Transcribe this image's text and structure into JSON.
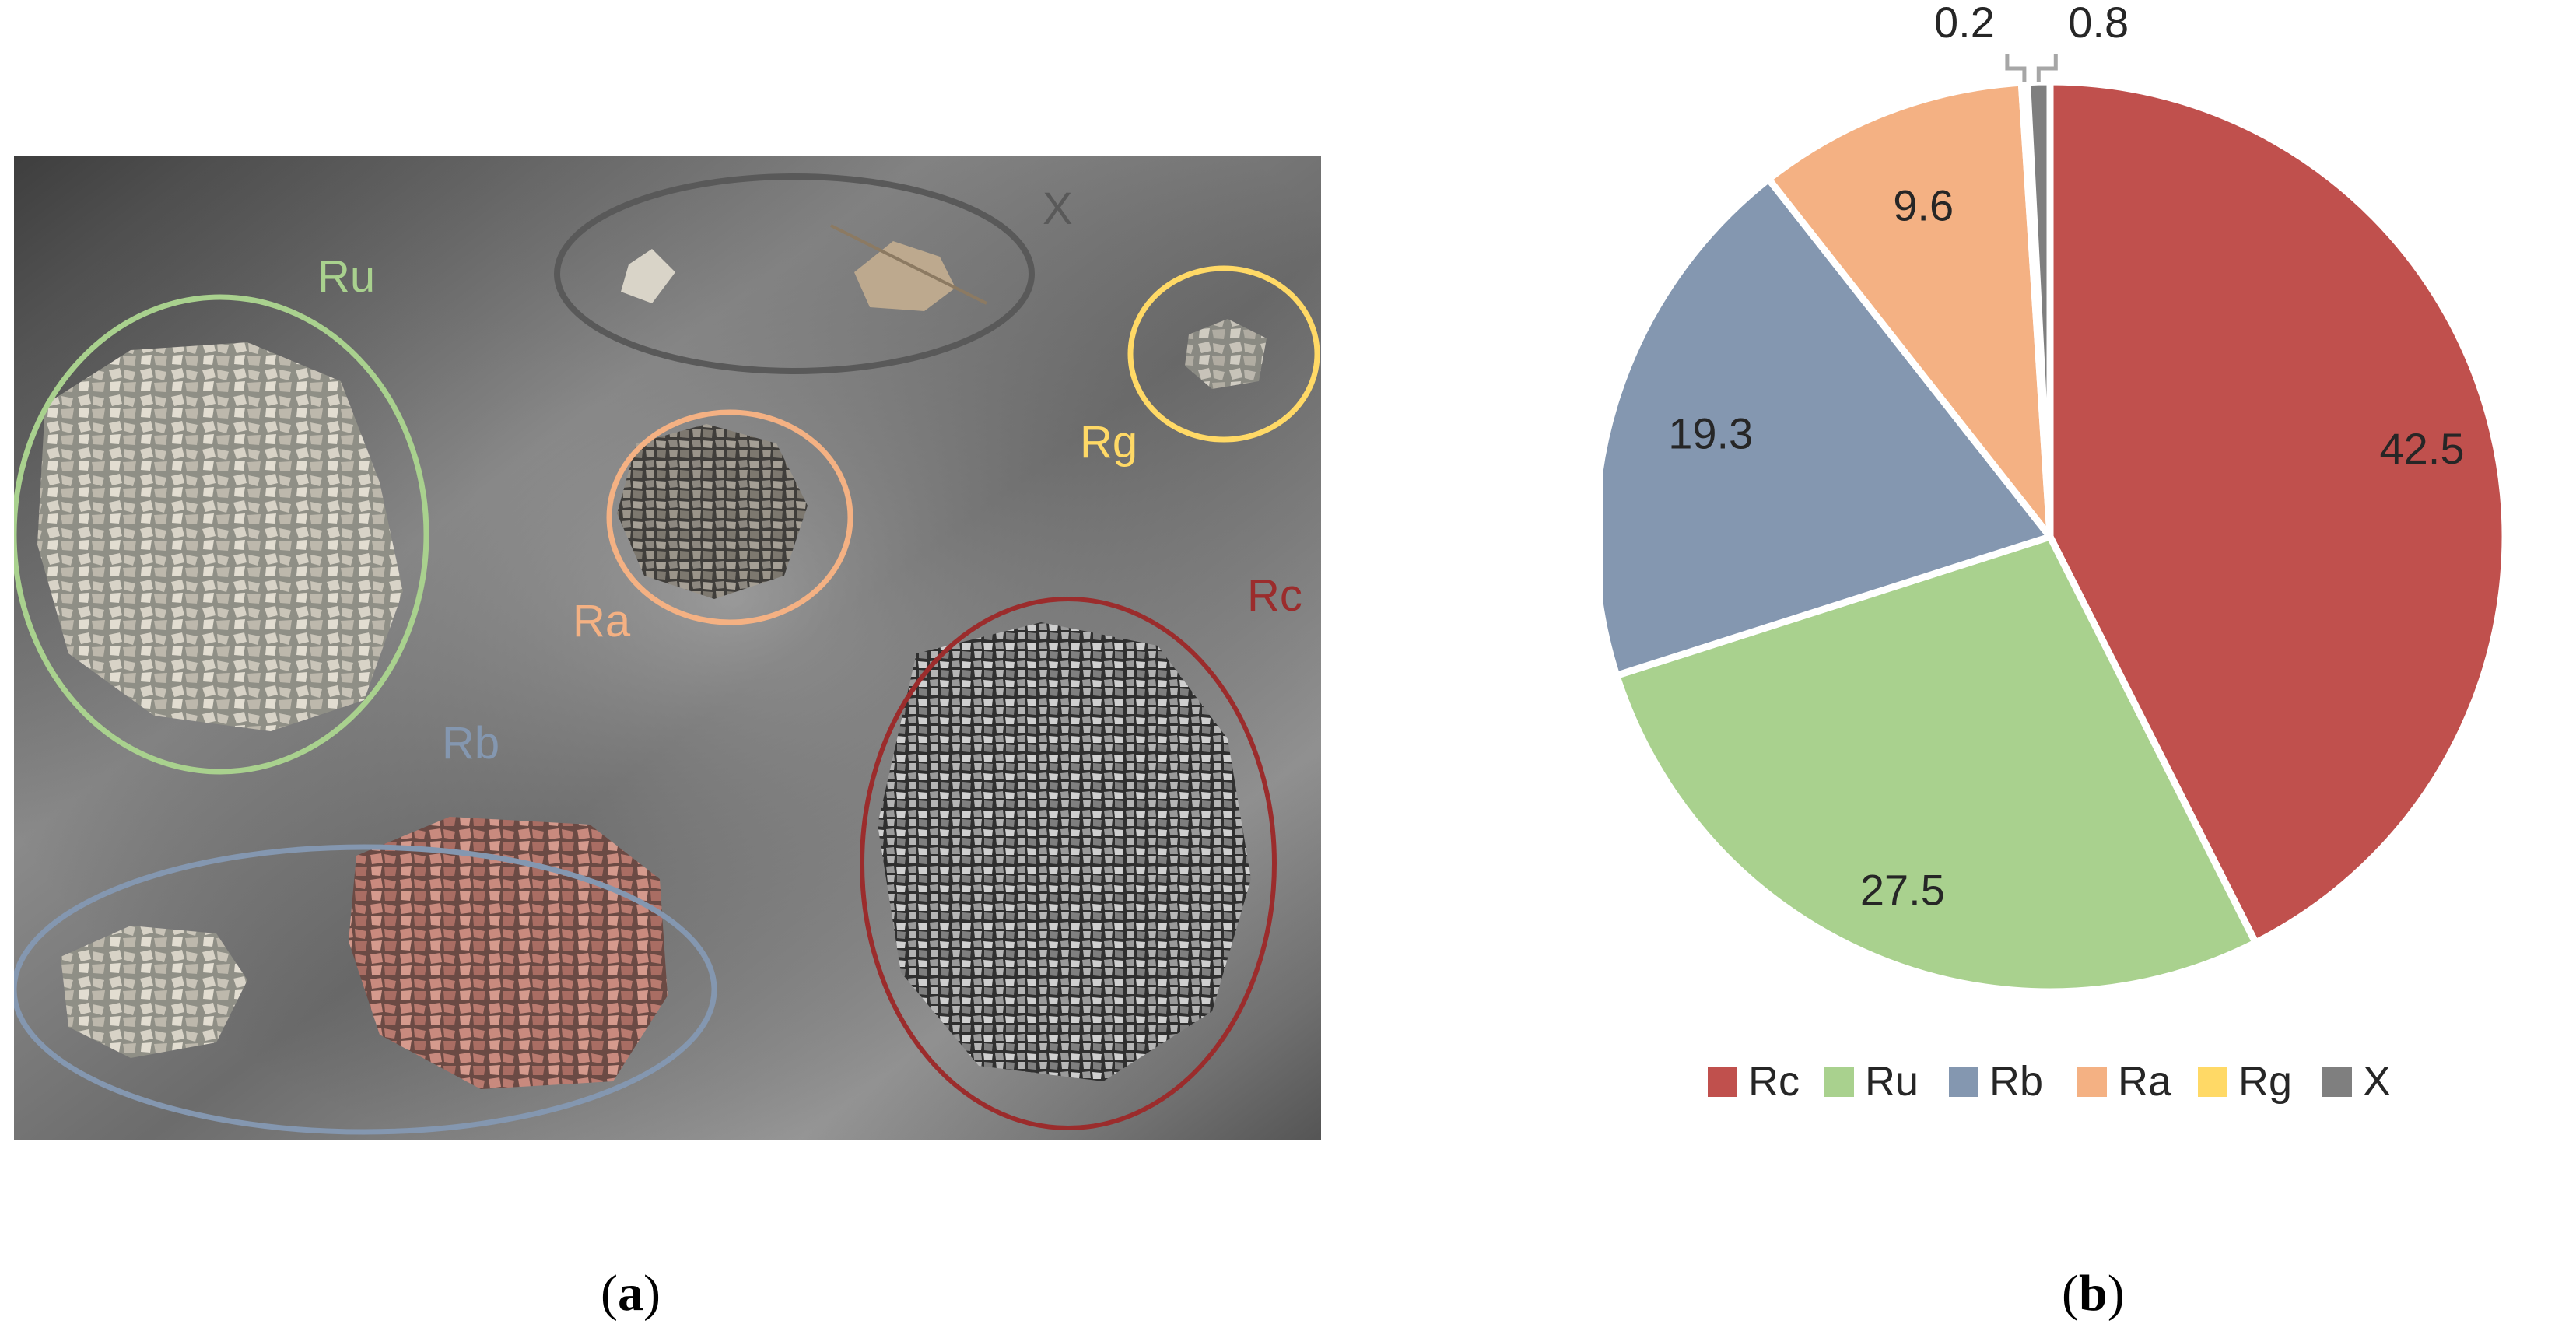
{
  "panel_a": {
    "caption_letter": "a",
    "labels": [
      {
        "key": "Ru",
        "text": "Ru",
        "color": "#a9d18e"
      },
      {
        "key": "X",
        "text": "X",
        "color": "#595959"
      },
      {
        "key": "Rg",
        "text": "Rg",
        "color": "#ffd966"
      },
      {
        "key": "Ra",
        "text": "Ra",
        "color": "#f4b183"
      },
      {
        "key": "Rc",
        "text": "Rc",
        "color": "#9b2c2c"
      },
      {
        "key": "Rb",
        "text": "Rb",
        "color": "#8497b0"
      }
    ]
  },
  "panel_b": {
    "caption_letter": "b"
  },
  "chart_data": {
    "type": "pie",
    "categories": [
      "Rc",
      "Ru",
      "Rb",
      "Ra",
      "Rg",
      "X"
    ],
    "values": [
      42.5,
      27.5,
      19.3,
      9.6,
      0.2,
      0.8
    ],
    "data_labels": [
      "42.5",
      "27.5",
      "19.3",
      "9.6",
      "0.2",
      "0.8"
    ],
    "colors": [
      "#c0504d",
      "#a9d18e",
      "#8497b0",
      "#f4b183",
      "#ffd966",
      "#7f7f7f"
    ],
    "legend": {
      "placement": "bottom",
      "entries": [
        "Rc",
        "Ru",
        "Rb",
        "Ra",
        "Rg",
        "X"
      ]
    }
  }
}
